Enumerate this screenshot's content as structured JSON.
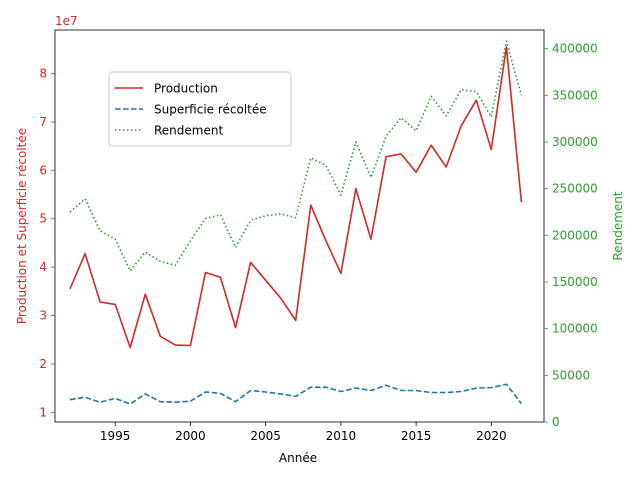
{
  "chart_data": {
    "type": "line",
    "xlabel": "Année",
    "ylabel_left": "Production et Superficie récoltée",
    "ylabel_right": "Rendement",
    "left_offset_label": "1e7",
    "xlim": [
      1991,
      2023.5
    ],
    "xticks": [
      1995,
      2000,
      2005,
      2010,
      2015,
      2020
    ],
    "ylim_left": [
      8000000,
      89000000
    ],
    "yticks_left": [
      10000000,
      20000000,
      30000000,
      40000000,
      50000000,
      60000000,
      70000000,
      80000000
    ],
    "ytick_labels_left": [
      "1",
      "2",
      "3",
      "4",
      "5",
      "6",
      "7",
      "8"
    ],
    "ylim_right": [
      0,
      420000
    ],
    "yticks_right": [
      0,
      50000,
      100000,
      150000,
      200000,
      250000,
      300000,
      350000,
      400000
    ],
    "ytick_labels_right": [
      "0",
      "50000",
      "100000",
      "150000",
      "200000",
      "250000",
      "300000",
      "350000",
      "400000"
    ],
    "grid": false,
    "legend_position": "upper-left",
    "colors": {
      "production": "#d62728",
      "superficie": "#1f77b4",
      "rendement": "#2ca02c",
      "left_axis": "#d62728",
      "right_axis": "#2ca02c"
    },
    "x": [
      1992,
      1993,
      1994,
      1995,
      1996,
      1997,
      1998,
      1999,
      2000,
      2001,
      2002,
      2003,
      2004,
      2005,
      2006,
      2007,
      2008,
      2009,
      2010,
      2011,
      2012,
      2013,
      2014,
      2015,
      2016,
      2017,
      2018,
      2019,
      2020,
      2021,
      2022
    ],
    "series": [
      {
        "name": "Production",
        "axis": "left",
        "style": "solid",
        "values": [
          35500000,
          42800000,
          32800000,
          32300000,
          23400000,
          34400000,
          25700000,
          23900000,
          23800000,
          38900000,
          37900000,
          27500000,
          41000000,
          37300000,
          33600000,
          29000000,
          52800000,
          45500000,
          38700000,
          56200000,
          45800000,
          62800000,
          63400000,
          59600000,
          65200000,
          60700000,
          69200000,
          74500000,
          64300000,
          85500000,
          53400000
        ]
      },
      {
        "name": "Superficie récoltée",
        "axis": "left",
        "style": "dashed",
        "values": [
          12600000,
          13100000,
          12100000,
          12900000,
          11700000,
          13800000,
          12200000,
          12100000,
          12300000,
          14200000,
          13900000,
          12200000,
          14500000,
          14200000,
          13800000,
          13300000,
          15200000,
          15200000,
          14300000,
          15000000,
          14500000,
          15600000,
          14500000,
          14500000,
          14100000,
          14100000,
          14300000,
          15000000,
          15100000,
          15800000,
          11800000
        ]
      },
      {
        "name": "Rendement",
        "axis": "right",
        "style": "dotted",
        "values": [
          225000,
          239000,
          205000,
          196000,
          162000,
          182000,
          172000,
          168000,
          194000,
          218000,
          222000,
          187000,
          216000,
          221000,
          223000,
          219000,
          283000,
          275000,
          243000,
          300000,
          262000,
          306000,
          326000,
          312000,
          349000,
          328000,
          356000,
          354000,
          327000,
          408000,
          350000
        ]
      }
    ]
  }
}
